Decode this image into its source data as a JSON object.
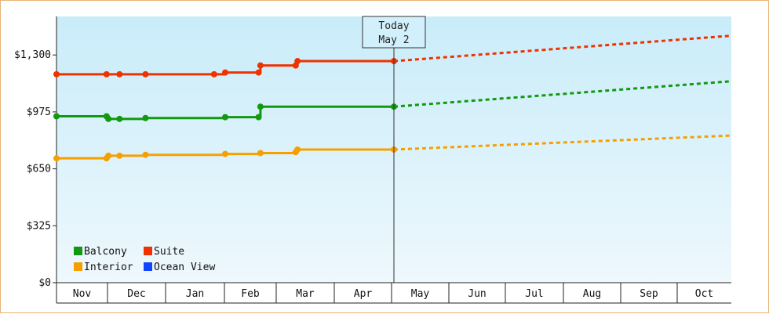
{
  "chart_data": {
    "type": "line",
    "title": "",
    "xlabel": "",
    "ylabel": "",
    "ylim": [
      0,
      1520
    ],
    "y_ticks": [
      {
        "value": 0,
        "label": "$0"
      },
      {
        "value": 325,
        "label": "$325"
      },
      {
        "value": 650,
        "label": "$650"
      },
      {
        "value": 975,
        "label": "$975"
      },
      {
        "value": 1300,
        "label": "$1,300"
      }
    ],
    "x_domain": [
      "2024-11-01",
      "2025-10-31"
    ],
    "x_ticks": [
      {
        "label": "Nov"
      },
      {
        "label": "Dec"
      },
      {
        "label": "Jan"
      },
      {
        "label": "Feb"
      },
      {
        "label": "Mar"
      },
      {
        "label": "Apr"
      },
      {
        "label": "May"
      },
      {
        "label": "Jun"
      },
      {
        "label": "Jul"
      },
      {
        "label": "Aug"
      },
      {
        "label": "Sep"
      },
      {
        "label": "Oct"
      }
    ],
    "today": {
      "title": "Today",
      "date_label": "May 2",
      "date": "2025-05-02"
    },
    "grid": false,
    "legend_position": "bottom-left",
    "background_gradient": [
      "#c9ecf9",
      "#eef8fd"
    ],
    "series": [
      {
        "name": "Balcony",
        "color": "#119911",
        "points": [
          {
            "x": "2024-11-01",
            "y": 950
          },
          {
            "x": "2024-11-28",
            "y": 950
          },
          {
            "x": "2024-11-29",
            "y": 935
          },
          {
            "x": "2024-12-05",
            "y": 935
          },
          {
            "x": "2024-12-19",
            "y": 940
          },
          {
            "x": "2025-01-31",
            "y": 945
          },
          {
            "x": "2025-02-18",
            "y": 945
          },
          {
            "x": "2025-02-19",
            "y": 1005
          },
          {
            "x": "2025-05-02",
            "y": 1005
          }
        ],
        "forecast": [
          {
            "x": "2025-05-02",
            "y": 1005
          },
          {
            "x": "2025-10-31",
            "y": 1150
          }
        ]
      },
      {
        "name": "Suite",
        "color": "#ee3300",
        "points": [
          {
            "x": "2024-11-01",
            "y": 1190
          },
          {
            "x": "2024-11-28",
            "y": 1190
          },
          {
            "x": "2024-12-05",
            "y": 1190
          },
          {
            "x": "2024-12-19",
            "y": 1190
          },
          {
            "x": "2025-01-25",
            "y": 1190
          },
          {
            "x": "2025-01-31",
            "y": 1200
          },
          {
            "x": "2025-02-18",
            "y": 1200
          },
          {
            "x": "2025-02-19",
            "y": 1240
          },
          {
            "x": "2025-03-10",
            "y": 1240
          },
          {
            "x": "2025-03-11",
            "y": 1265
          },
          {
            "x": "2025-05-02",
            "y": 1265
          }
        ],
        "forecast": [
          {
            "x": "2025-05-02",
            "y": 1265
          },
          {
            "x": "2025-10-31",
            "y": 1410
          }
        ]
      },
      {
        "name": "Interior",
        "color": "#f5a000",
        "points": [
          {
            "x": "2024-11-01",
            "y": 710
          },
          {
            "x": "2024-11-28",
            "y": 710
          },
          {
            "x": "2024-11-29",
            "y": 725
          },
          {
            "x": "2024-12-05",
            "y": 725
          },
          {
            "x": "2024-12-19",
            "y": 730
          },
          {
            "x": "2025-01-31",
            "y": 735
          },
          {
            "x": "2025-02-19",
            "y": 740
          },
          {
            "x": "2025-03-10",
            "y": 745
          },
          {
            "x": "2025-03-11",
            "y": 760
          },
          {
            "x": "2025-05-02",
            "y": 760
          }
        ],
        "forecast": [
          {
            "x": "2025-05-02",
            "y": 760
          },
          {
            "x": "2025-10-31",
            "y": 840
          }
        ]
      },
      {
        "name": "Ocean View",
        "color": "#1144ff",
        "points": [],
        "forecast": []
      }
    ]
  }
}
